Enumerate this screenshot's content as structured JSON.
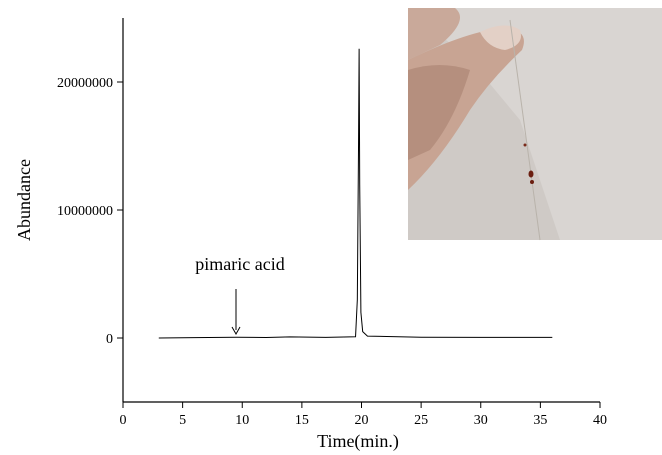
{
  "chart_data": {
    "type": "line",
    "x_label": "Time(min.)",
    "y_label": "Abundance",
    "annotation": "pimaric acid",
    "x": [
      3,
      6,
      9.5,
      12,
      14,
      17,
      19.5,
      19.65,
      19.75,
      19.8,
      19.85,
      19.95,
      20.1,
      20.5,
      25,
      30,
      36
    ],
    "values": [
      0,
      30000,
      60000,
      40000,
      90000,
      50000,
      100000,
      3000000,
      15000000,
      22600000,
      12000000,
      2000000,
      500000,
      150000,
      60000,
      50000,
      50000
    ],
    "color": "#000000",
    "xlim": [
      0,
      40
    ],
    "xticks": [
      0,
      5,
      10,
      15,
      20,
      25,
      30,
      35,
      40
    ],
    "ylim": [
      -5000000,
      25000000
    ],
    "yticks": [
      0,
      10000000,
      20000000
    ]
  }
}
